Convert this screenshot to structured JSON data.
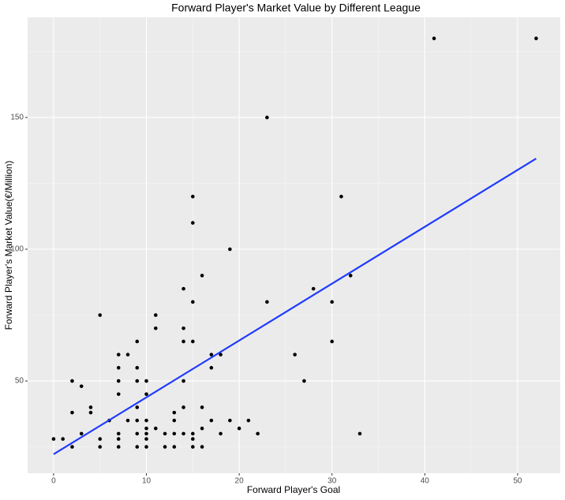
{
  "chart_data": {
    "type": "scatter",
    "title": "Forward Player's Market Value by Different League",
    "x_label": "Forward Player's Goal",
    "y_label": "Forward Player's Market Value(€/Million)",
    "x": [
      0,
      1,
      2,
      2,
      2,
      3,
      3,
      4,
      4,
      5,
      5,
      5,
      6,
      7,
      7,
      7,
      7,
      7,
      7,
      7,
      8,
      8,
      9,
      9,
      9,
      9,
      9,
      9,
      9,
      10,
      10,
      10,
      10,
      10,
      10,
      10,
      11,
      11,
      11,
      12,
      12,
      13,
      13,
      13,
      13,
      14,
      14,
      14,
      14,
      14,
      14,
      15,
      15,
      15,
      15,
      15,
      15,
      15,
      16,
      16,
      16,
      16,
      17,
      17,
      17,
      18,
      18,
      19,
      19,
      20,
      21,
      22,
      23,
      23,
      26,
      27,
      28,
      30,
      30,
      31,
      32,
      33,
      41,
      52
    ],
    "values": [
      28,
      28,
      50,
      38,
      25,
      48,
      30,
      40,
      38,
      75,
      28,
      25,
      35,
      60,
      55,
      50,
      45,
      30,
      28,
      25,
      60,
      35,
      65,
      55,
      50,
      40,
      35,
      30,
      25,
      50,
      45,
      35,
      32,
      30,
      28,
      25,
      75,
      70,
      32,
      30,
      25,
      38,
      35,
      30,
      25,
      85,
      70,
      65,
      50,
      40,
      30,
      120,
      110,
      80,
      65,
      30,
      28,
      25,
      90,
      40,
      32,
      25,
      60,
      55,
      35,
      60,
      30,
      100,
      35,
      32,
      35,
      30,
      150,
      80,
      60,
      50,
      85,
      80,
      65,
      120,
      90,
      30,
      180,
      180
    ],
    "color": "#000000",
    "trend_line": {
      "x": [
        0,
        52
      ],
      "values": [
        22.2,
        134.4
      ],
      "color": "#1f3bff"
    },
    "xlim": [
      -2.8,
      54.6
    ],
    "ylim": [
      15,
      188
    ],
    "xticks": [
      0,
      10,
      20,
      30,
      40,
      50
    ],
    "yticks": [
      50,
      100,
      150
    ],
    "grid": true
  }
}
